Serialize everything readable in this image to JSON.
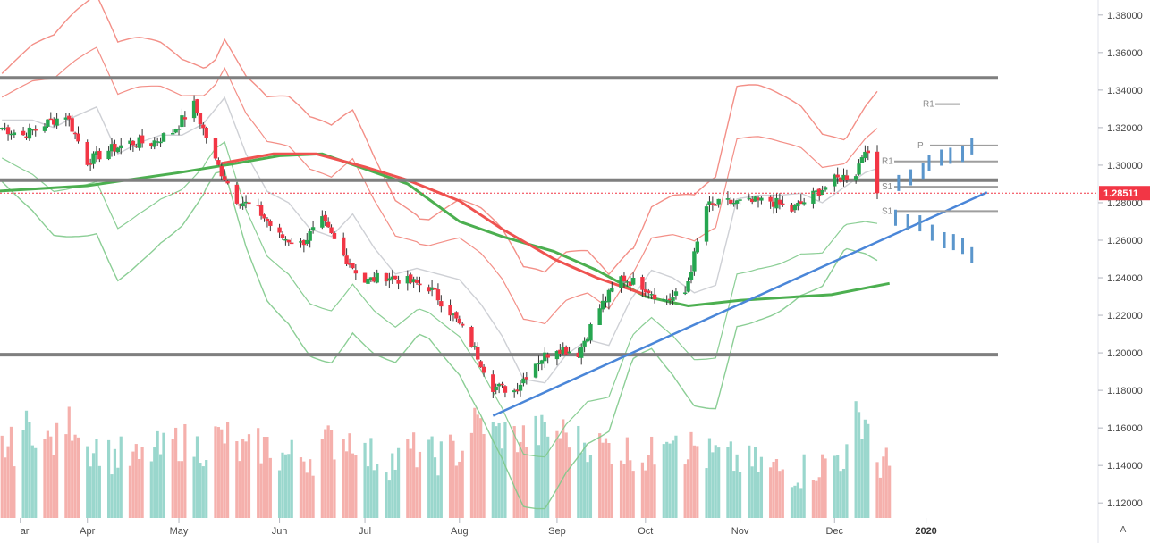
{
  "chart_data": {
    "type": "candlestick",
    "y_axis": {
      "ylim": [
        1.112,
        1.388
      ],
      "ticks": [
        "1.38000",
        "1.36000",
        "1.34000",
        "1.32000",
        "1.30000",
        "1.28000",
        "1.26000",
        "1.24000",
        "1.22000",
        "1.20000",
        "1.18000",
        "1.16000",
        "1.14000",
        "1.12000"
      ]
    },
    "x_axis": {
      "labels": [
        {
          "text": "ar",
          "date": "2019-03-10"
        },
        {
          "text": "Apr",
          "date": "2019-04-01"
        },
        {
          "text": "May",
          "date": "2019-05-01"
        },
        {
          "text": "Jun",
          "date": "2019-06-03"
        },
        {
          "text": "Jul",
          "date": "2019-07-01"
        },
        {
          "text": "Aug",
          "date": "2019-08-01"
        },
        {
          "text": "Sep",
          "date": "2019-09-02"
        },
        {
          "text": "Oct",
          "date": "2019-10-01"
        },
        {
          "text": "Nov",
          "date": "2019-11-01"
        },
        {
          "text": "Dec",
          "date": "2019-12-02"
        },
        {
          "text": "2020",
          "date": "2020-01-01",
          "bold": true
        }
      ]
    },
    "last_price": {
      "value": 1.28511,
      "label": "1.28511",
      "color": "#f23645"
    },
    "horizontal_levels": [
      1.3465,
      1.292,
      1.199
    ],
    "pivots": [
      {
        "label": "R1",
        "value": 1.3325
      },
      {
        "label": "P",
        "value": 1.3105
      },
      {
        "label": "R1",
        "value": 1.302
      },
      {
        "label": "S1",
        "value": 1.2885
      },
      {
        "label": "S1",
        "value": 1.2755
      }
    ],
    "trendline": {
      "from": {
        "date": "2019-08-12",
        "price": 1.1665
      },
      "to": {
        "date": "2020-01-21",
        "price": 1.2855
      }
    },
    "close_series": [
      [
        "2019-03-04",
        1.32
      ],
      [
        "2019-03-11",
        1.316
      ],
      [
        "2019-03-18",
        1.322
      ],
      [
        "2019-03-25",
        1.327
      ],
      [
        "2019-04-01",
        1.302
      ],
      [
        "2019-04-08",
        1.308
      ],
      [
        "2019-04-15",
        1.312
      ],
      [
        "2019-04-22",
        1.312
      ],
      [
        "2019-04-29",
        1.318
      ],
      [
        "2019-05-06",
        1.332
      ],
      [
        "2019-05-13",
        1.302
      ],
      [
        "2019-05-20",
        1.282
      ],
      [
        "2019-05-27",
        1.276
      ],
      [
        "2019-06-03",
        1.262
      ],
      [
        "2019-06-10",
        1.258
      ],
      [
        "2019-06-17",
        1.27
      ],
      [
        "2019-06-24",
        1.252
      ],
      [
        "2019-07-01",
        1.238
      ],
      [
        "2019-07-08",
        1.241
      ],
      [
        "2019-07-15",
        1.238
      ],
      [
        "2019-07-22",
        1.235
      ],
      [
        "2019-07-29",
        1.222
      ],
      [
        "2019-08-05",
        1.205
      ],
      [
        "2019-08-12",
        1.182
      ],
      [
        "2019-08-19",
        1.18
      ],
      [
        "2019-08-26",
        1.195
      ],
      [
        "2019-09-02",
        1.203
      ],
      [
        "2019-09-09",
        1.2
      ],
      [
        "2019-09-16",
        1.224
      ],
      [
        "2019-09-23",
        1.24
      ],
      [
        "2019-09-30",
        1.236
      ],
      [
        "2019-10-07",
        1.228
      ],
      [
        "2019-10-14",
        1.232
      ],
      [
        "2019-10-21",
        1.278
      ],
      [
        "2019-10-28",
        1.28
      ],
      [
        "2019-11-04",
        1.28
      ],
      [
        "2019-11-11",
        1.281
      ],
      [
        "2019-11-18",
        1.276
      ],
      [
        "2019-11-25",
        1.284
      ],
      [
        "2019-12-02",
        1.292
      ],
      [
        "2019-12-09",
        1.296
      ],
      [
        "2019-12-12",
        1.31
      ],
      [
        "2019-12-16",
        1.285
      ]
    ],
    "ma_green": [
      [
        "2019-03-01",
        1.286
      ],
      [
        "2019-04-01",
        1.289
      ],
      [
        "2019-05-01",
        1.296
      ],
      [
        "2019-05-20",
        1.301
      ],
      [
        "2019-06-03",
        1.305
      ],
      [
        "2019-06-17",
        1.306
      ],
      [
        "2019-07-01",
        1.298
      ],
      [
        "2019-07-15",
        1.29
      ],
      [
        "2019-08-01",
        1.27
      ],
      [
        "2019-08-15",
        1.262
      ],
      [
        "2019-09-01",
        1.254
      ],
      [
        "2019-09-15",
        1.244
      ],
      [
        "2019-10-01",
        1.23
      ],
      [
        "2019-10-15",
        1.225
      ],
      [
        "2019-11-01",
        1.228
      ],
      [
        "2019-12-01",
        1.231
      ],
      [
        "2019-12-20",
        1.237
      ]
    ],
    "ma_red": [
      [
        "2019-05-15",
        1.301
      ],
      [
        "2019-06-01",
        1.306
      ],
      [
        "2019-06-15",
        1.306
      ],
      [
        "2019-07-01",
        1.299
      ],
      [
        "2019-07-15",
        1.292
      ],
      [
        "2019-08-01",
        1.281
      ],
      [
        "2019-08-15",
        1.266
      ],
      [
        "2019-09-01",
        1.25
      ],
      [
        "2019-09-15",
        1.24
      ],
      [
        "2019-10-01",
        1.231
      ]
    ],
    "volume": [
      {
        "date": "2019-03-04",
        "value": 0.55,
        "up": false
      },
      {
        "date": "2019-03-11",
        "value": 0.75,
        "up": true
      },
      {
        "date": "2019-03-18",
        "value": 0.6,
        "up": false
      },
      {
        "date": "2019-03-25",
        "value": 0.8,
        "up": false
      },
      {
        "date": "2019-04-01",
        "value": 0.55,
        "up": true
      },
      {
        "date": "2019-04-08",
        "value": 0.45,
        "up": true
      },
      {
        "date": "2019-04-15",
        "value": 0.4,
        "up": false
      },
      {
        "date": "2019-04-22",
        "value": 0.5,
        "up": true
      },
      {
        "date": "2019-04-29",
        "value": 0.6,
        "up": false
      },
      {
        "date": "2019-05-06",
        "value": 0.55,
        "up": true
      },
      {
        "date": "2019-05-13",
        "value": 0.65,
        "up": false
      },
      {
        "date": "2019-05-20",
        "value": 0.5,
        "up": false
      },
      {
        "date": "2019-05-27",
        "value": 0.55,
        "up": false
      },
      {
        "date": "2019-06-03",
        "value": 0.45,
        "up": true
      },
      {
        "date": "2019-06-10",
        "value": 0.45,
        "up": false
      },
      {
        "date": "2019-06-17",
        "value": 0.6,
        "up": false
      },
      {
        "date": "2019-06-24",
        "value": 0.65,
        "up": false
      },
      {
        "date": "2019-07-01",
        "value": 0.45,
        "up": true
      },
      {
        "date": "2019-07-08",
        "value": 0.4,
        "up": true
      },
      {
        "date": "2019-07-15",
        "value": 0.5,
        "up": false
      },
      {
        "date": "2019-07-22",
        "value": 0.45,
        "up": true
      },
      {
        "date": "2019-07-29",
        "value": 0.5,
        "up": false
      },
      {
        "date": "2019-08-05",
        "value": 0.8,
        "up": false
      },
      {
        "date": "2019-08-12",
        "value": 0.7,
        "up": true
      },
      {
        "date": "2019-08-19",
        "value": 0.65,
        "up": false
      },
      {
        "date": "2019-08-26",
        "value": 0.7,
        "up": true
      },
      {
        "date": "2019-09-02",
        "value": 0.7,
        "up": false
      },
      {
        "date": "2019-09-09",
        "value": 0.6,
        "up": true
      },
      {
        "date": "2019-09-16",
        "value": 0.55,
        "up": false
      },
      {
        "date": "2019-09-23",
        "value": 0.5,
        "up": false
      },
      {
        "date": "2019-09-30",
        "value": 0.45,
        "up": false
      },
      {
        "date": "2019-10-07",
        "value": 0.75,
        "up": true
      },
      {
        "date": "2019-10-14",
        "value": 0.55,
        "up": false
      },
      {
        "date": "2019-10-21",
        "value": 0.45,
        "up": true
      },
      {
        "date": "2019-10-28",
        "value": 0.4,
        "up": true
      },
      {
        "date": "2019-11-04",
        "value": 0.35,
        "up": true
      },
      {
        "date": "2019-11-11",
        "value": 0.3,
        "up": false
      },
      {
        "date": "2019-11-18",
        "value": 0.3,
        "up": true
      },
      {
        "date": "2019-11-25",
        "value": 0.35,
        "up": false
      },
      {
        "date": "2019-12-02",
        "value": 0.45,
        "up": true
      },
      {
        "date": "2019-12-09",
        "value": 0.85,
        "up": true
      },
      {
        "date": "2019-12-16",
        "value": 0.35,
        "up": false
      }
    ],
    "forecast_bars": [
      {
        "date": "2019-12-23",
        "price": 1.2905
      },
      {
        "date": "2019-12-27",
        "price": 1.2935
      },
      {
        "date": "2019-12-31",
        "price": 1.297
      },
      {
        "date": "2020-01-02",
        "price": 1.301
      },
      {
        "date": "2020-01-06",
        "price": 1.304
      },
      {
        "date": "2020-01-09",
        "price": 1.305
      },
      {
        "date": "2020-01-13",
        "price": 1.306
      },
      {
        "date": "2020-01-16",
        "price": 1.31
      },
      {
        "date": "2019-12-22",
        "price": 1.272
      },
      {
        "date": "2019-12-26",
        "price": 1.2695
      },
      {
        "date": "2019-12-30",
        "price": 1.269
      },
      {
        "date": "2020-01-03",
        "price": 1.264
      },
      {
        "date": "2020-01-07",
        "price": 1.26
      },
      {
        "date": "2020-01-10",
        "price": 1.259
      },
      {
        "date": "2020-01-13",
        "price": 1.257
      },
      {
        "date": "2020-01-16",
        "price": 1.252
      }
    ]
  },
  "controls": {
    "auto_label": "A"
  },
  "colors": {
    "up": "#26a650",
    "down": "#f23645",
    "level": "#7f7f7f",
    "trend": "#4a86d8",
    "forecast": "#5b96cc",
    "ma_green": "#4caf50",
    "band_red": "#f2837a",
    "band_green": "#7ec98a",
    "sma_gray": "#c9cbd0"
  }
}
